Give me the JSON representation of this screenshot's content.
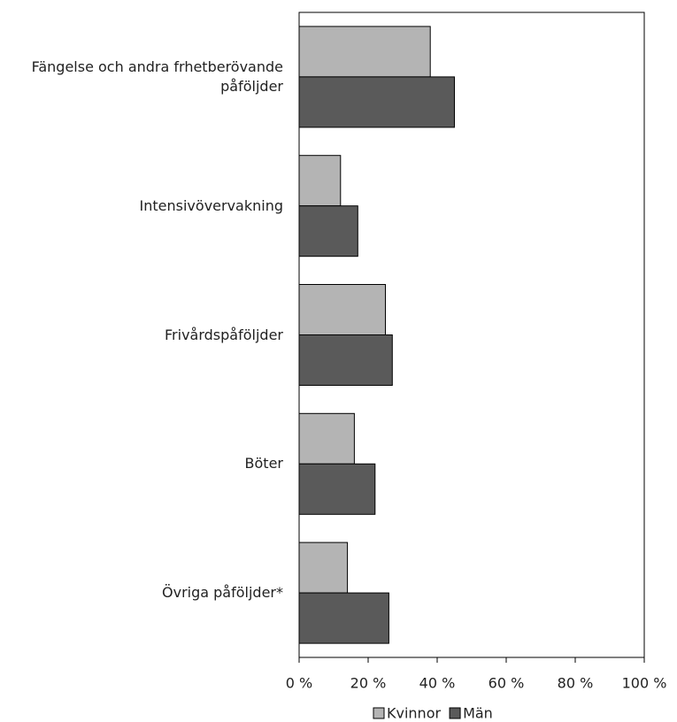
{
  "chart_data": {
    "type": "hbar",
    "categories": [
      "Fängelse och andra frhetberövande påföljder",
      "Intensivövervakning",
      "Frivårdspåföljder",
      "Böter",
      "Övriga påföljder*"
    ],
    "series": [
      {
        "name": "Kvinnor",
        "color": "#b4b4b4",
        "values": [
          38,
          12,
          25,
          16,
          14
        ]
      },
      {
        "name": "Män",
        "color": "#5a5a5a",
        "values": [
          45,
          17,
          27,
          22,
          26
        ]
      }
    ],
    "xlim": [
      0,
      100
    ],
    "xticks": [
      {
        "value": 0,
        "label": "0 %"
      },
      {
        "value": 20,
        "label": "20 %"
      },
      {
        "value": 40,
        "label": "40 %"
      },
      {
        "value": 60,
        "label": "60 %"
      },
      {
        "value": 80,
        "label": "80 %"
      },
      {
        "value": 100,
        "label": "100 %"
      }
    ],
    "grid": false,
    "legend": "bottom"
  }
}
